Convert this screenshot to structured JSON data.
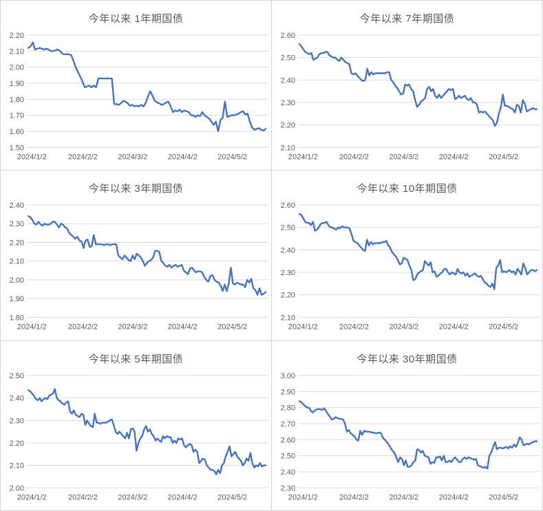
{
  "colors": {
    "line": "#4472C4",
    "gridline": "#d9d9d9",
    "axis_text": "#595959",
    "title_text": "#595959",
    "panel_border": "#d3d3d3",
    "background": "#ffffff"
  },
  "chart_data": [
    {
      "type": "line",
      "title": "今年以来 1年期国债",
      "xlabel": "",
      "ylabel": "",
      "ylim": [
        1.5,
        2.2
      ],
      "ystep": 0.1,
      "grid": true,
      "legend": "none",
      "x_ticks": [
        "2024/1/2",
        "2024/2/2",
        "2024/3/2",
        "2024/4/2",
        "2024/5/2"
      ],
      "values": [
        2.12,
        2.13,
        2.155,
        2.11,
        2.115,
        2.12,
        2.115,
        2.11,
        2.115,
        2.11,
        2.1,
        2.1,
        2.105,
        2.11,
        2.1,
        2.085,
        2.08,
        2.08,
        2.08,
        2.075,
        2.04,
        2.0,
        1.97,
        1.94,
        1.91,
        1.875,
        1.88,
        1.885,
        1.875,
        1.885,
        1.875,
        1.93,
        1.93,
        1.93,
        1.93,
        1.93,
        1.93,
        1.93,
        1.77,
        1.77,
        1.765,
        1.775,
        1.79,
        1.785,
        1.775,
        1.76,
        1.765,
        1.755,
        1.76,
        1.755,
        1.765,
        1.755,
        1.78,
        1.82,
        1.85,
        1.82,
        1.79,
        1.78,
        1.775,
        1.765,
        1.77,
        1.78,
        1.785,
        1.755,
        1.72,
        1.73,
        1.725,
        1.735,
        1.72,
        1.73,
        1.725,
        1.72,
        1.7,
        1.7,
        1.69,
        1.7,
        1.695,
        1.72,
        1.7,
        1.69,
        1.68,
        1.66,
        1.64,
        1.66,
        1.6,
        1.67,
        1.685,
        1.785,
        1.69,
        1.695,
        1.7,
        1.7,
        1.705,
        1.71,
        1.72,
        1.725,
        1.705,
        1.71,
        1.66,
        1.625,
        1.61,
        1.615,
        1.62,
        1.61,
        1.605,
        1.615
      ]
    },
    {
      "type": "line",
      "title": "今年以来 7年期国债",
      "xlabel": "",
      "ylabel": "",
      "ylim": [
        2.1,
        2.6
      ],
      "ystep": 0.1,
      "grid": true,
      "legend": "none",
      "x_ticks": [
        "2024/1/2",
        "2024/2/2",
        "2024/3/2",
        "2024/4/2",
        "2024/5/2"
      ],
      "values": [
        2.56,
        2.55,
        2.535,
        2.525,
        2.52,
        2.515,
        2.52,
        2.49,
        2.495,
        2.5,
        2.515,
        2.52,
        2.52,
        2.525,
        2.525,
        2.51,
        2.505,
        2.5,
        2.5,
        2.49,
        2.485,
        2.5,
        2.49,
        2.48,
        2.475,
        2.47,
        2.43,
        2.425,
        2.43,
        2.42,
        2.41,
        2.4,
        2.395,
        2.4,
        2.45,
        2.42,
        2.435,
        2.425,
        2.43,
        2.43,
        2.43,
        2.43,
        2.43,
        2.43,
        2.435,
        2.435,
        2.4,
        2.39,
        2.375,
        2.365,
        2.35,
        2.335,
        2.34,
        2.38,
        2.375,
        2.38,
        2.36,
        2.35,
        2.31,
        2.28,
        2.29,
        2.305,
        2.31,
        2.32,
        2.36,
        2.37,
        2.35,
        2.36,
        2.33,
        2.32,
        2.335,
        2.32,
        2.33,
        2.34,
        2.35,
        2.36,
        2.355,
        2.36,
        2.315,
        2.32,
        2.33,
        2.32,
        2.325,
        2.33,
        2.315,
        2.31,
        2.32,
        2.3,
        2.3,
        2.29,
        2.255,
        2.26,
        2.255,
        2.26,
        2.25,
        2.24,
        2.23,
        2.22,
        2.195,
        2.21,
        2.25,
        2.28,
        2.335,
        2.285,
        2.285,
        2.28,
        2.275,
        2.27,
        2.255,
        2.29,
        2.285,
        2.255,
        2.31,
        2.295,
        2.26,
        2.265,
        2.27,
        2.275,
        2.27,
        2.27
      ]
    },
    {
      "type": "line",
      "title": "今年以来 3年期国债",
      "xlabel": "",
      "ylabel": "",
      "ylim": [
        1.8,
        2.4
      ],
      "ystep": 0.1,
      "grid": true,
      "legend": "none",
      "x_ticks": [
        "2024/1/2",
        "2024/2/2",
        "2024/3/2",
        "2024/4/2",
        "2024/5/2"
      ],
      "values": [
        2.34,
        2.335,
        2.32,
        2.3,
        2.295,
        2.31,
        2.295,
        2.29,
        2.3,
        2.295,
        2.295,
        2.3,
        2.31,
        2.31,
        2.295,
        2.28,
        2.3,
        2.295,
        2.28,
        2.275,
        2.25,
        2.24,
        2.23,
        2.22,
        2.23,
        2.21,
        2.205,
        2.17,
        2.21,
        2.215,
        2.175,
        2.18,
        2.24,
        2.19,
        2.19,
        2.19,
        2.19,
        2.185,
        2.19,
        2.19,
        2.185,
        2.19,
        2.19,
        2.19,
        2.13,
        2.12,
        2.11,
        2.13,
        2.12,
        2.105,
        2.1,
        2.13,
        2.11,
        2.14,
        2.13,
        2.12,
        2.1,
        2.075,
        2.09,
        2.1,
        2.105,
        2.12,
        2.155,
        2.155,
        2.15,
        2.1,
        2.09,
        2.075,
        2.07,
        2.08,
        2.065,
        2.075,
        2.08,
        2.07,
        2.075,
        2.08,
        2.05,
        2.04,
        2.03,
        2.06,
        2.065,
        2.05,
        2.04,
        2.045,
        2.045,
        2.04,
        2.015,
        2.0,
        1.99,
        2.02,
        2.025,
        2.0,
        1.99,
        1.985,
        1.97,
        1.94,
        1.975,
        1.94,
        1.98,
        2.065,
        1.98,
        1.975,
        1.985,
        1.98,
        1.975,
        1.975,
        1.96,
        2.0,
        1.985,
        2.005,
        1.955,
        1.945,
        1.92,
        1.955,
        1.92,
        1.925,
        1.935
      ]
    },
    {
      "type": "line",
      "title": "今年以来 10年期国债",
      "xlabel": "",
      "ylabel": "",
      "ylim": [
        2.1,
        2.6
      ],
      "ystep": 0.1,
      "grid": true,
      "legend": "none",
      "x_ticks": [
        "2024/1/2",
        "2024/2/2",
        "2024/3/2",
        "2024/4/2",
        "2024/5/2"
      ],
      "values": [
        2.56,
        2.555,
        2.54,
        2.525,
        2.52,
        2.52,
        2.51,
        2.525,
        2.485,
        2.49,
        2.5,
        2.515,
        2.52,
        2.52,
        2.525,
        2.51,
        2.5,
        2.5,
        2.495,
        2.49,
        2.5,
        2.495,
        2.505,
        2.5,
        2.5,
        2.5,
        2.495,
        2.47,
        2.44,
        2.435,
        2.43,
        2.42,
        2.41,
        2.4,
        2.395,
        2.445,
        2.42,
        2.435,
        2.425,
        2.43,
        2.43,
        2.43,
        2.43,
        2.435,
        2.435,
        2.44,
        2.42,
        2.41,
        2.39,
        2.38,
        2.37,
        2.355,
        2.335,
        2.34,
        2.365,
        2.36,
        2.355,
        2.33,
        2.31,
        2.265,
        2.27,
        2.29,
        2.3,
        2.305,
        2.31,
        2.35,
        2.34,
        2.33,
        2.345,
        2.3,
        2.305,
        2.28,
        2.285,
        2.295,
        2.3,
        2.315,
        2.315,
        2.3,
        2.29,
        2.3,
        2.295,
        2.29,
        2.315,
        2.3,
        2.295,
        2.3,
        2.285,
        2.295,
        2.28,
        2.285,
        2.29,
        2.295,
        2.285,
        2.28,
        2.285,
        2.27,
        2.255,
        2.25,
        2.24,
        2.235,
        2.25,
        2.225,
        2.32,
        2.33,
        2.355,
        2.3,
        2.305,
        2.3,
        2.305,
        2.31,
        2.3,
        2.305,
        2.29,
        2.315,
        2.305,
        2.29,
        2.34,
        2.32,
        2.29,
        2.3,
        2.31,
        2.31,
        2.305,
        2.31
      ]
    },
    {
      "type": "line",
      "title": "今年以来 5年期国债",
      "xlabel": "",
      "ylabel": "",
      "ylim": [
        2.0,
        2.5
      ],
      "ystep": 0.1,
      "grid": true,
      "legend": "none",
      "x_ticks": [
        "2024/1/2",
        "2024/2/2",
        "2024/3/2",
        "2024/4/2",
        "2024/5/2"
      ],
      "values": [
        2.435,
        2.43,
        2.42,
        2.41,
        2.395,
        2.39,
        2.4,
        2.385,
        2.395,
        2.4,
        2.395,
        2.41,
        2.415,
        2.42,
        2.44,
        2.4,
        2.39,
        2.385,
        2.375,
        2.37,
        2.38,
        2.385,
        2.34,
        2.33,
        2.345,
        2.325,
        2.32,
        2.315,
        2.33,
        2.325,
        2.28,
        2.3,
        2.285,
        2.275,
        2.27,
        2.33,
        2.29,
        2.29,
        2.285,
        2.29,
        2.29,
        2.29,
        2.295,
        2.3,
        2.305,
        2.28,
        2.25,
        2.24,
        2.25,
        2.24,
        2.23,
        2.22,
        2.245,
        2.22,
        2.26,
        2.265,
        2.25,
        2.165,
        2.2,
        2.22,
        2.23,
        2.26,
        2.275,
        2.25,
        2.26,
        2.24,
        2.23,
        2.21,
        2.22,
        2.21,
        2.205,
        2.23,
        2.22,
        2.23,
        2.225,
        2.225,
        2.2,
        2.21,
        2.2,
        2.22,
        2.215,
        2.22,
        2.19,
        2.18,
        2.19,
        2.195,
        2.19,
        2.16,
        2.17,
        2.16,
        2.11,
        2.12,
        2.13,
        2.125,
        2.1,
        2.09,
        2.08,
        2.08,
        2.075,
        2.06,
        2.08,
        2.065,
        2.1,
        2.11,
        2.14,
        2.16,
        2.185,
        2.14,
        2.15,
        2.16,
        2.14,
        2.13,
        2.12,
        2.1,
        2.11,
        2.13,
        2.12,
        2.155,
        2.11,
        2.09,
        2.1,
        2.095,
        2.11,
        2.095,
        2.1,
        2.1
      ]
    },
    {
      "type": "line",
      "title": "今年以来 30年期国债",
      "xlabel": "",
      "ylabel": "",
      "ylim": [
        2.3,
        3.0
      ],
      "ystep": 0.1,
      "grid": true,
      "legend": "none",
      "x_ticks": [
        "2024/1/2",
        "2024/2/2",
        "2024/3/2",
        "2024/4/2",
        "2024/5/2"
      ],
      "values": [
        2.84,
        2.835,
        2.82,
        2.81,
        2.8,
        2.8,
        2.78,
        2.77,
        2.78,
        2.79,
        2.79,
        2.79,
        2.785,
        2.795,
        2.78,
        2.76,
        2.745,
        2.725,
        2.73,
        2.74,
        2.735,
        2.73,
        2.73,
        2.725,
        2.7,
        2.65,
        2.66,
        2.64,
        2.63,
        2.62,
        2.6,
        2.595,
        2.655,
        2.63,
        2.655,
        2.65,
        2.65,
        2.65,
        2.645,
        2.645,
        2.64,
        2.64,
        2.645,
        2.64,
        2.61,
        2.6,
        2.585,
        2.57,
        2.55,
        2.53,
        2.52,
        2.49,
        2.46,
        2.49,
        2.48,
        2.44,
        2.47,
        2.43,
        2.43,
        2.44,
        2.46,
        2.47,
        2.54,
        2.535,
        2.52,
        2.53,
        2.5,
        2.495,
        2.49,
        2.45,
        2.46,
        2.455,
        2.49,
        2.49,
        2.495,
        2.47,
        2.5,
        2.46,
        2.46,
        2.47,
        2.46,
        2.48,
        2.49,
        2.475,
        2.46,
        2.46,
        2.48,
        2.49,
        2.48,
        2.49,
        2.485,
        2.48,
        2.475,
        2.48,
        2.44,
        2.435,
        2.43,
        2.425,
        2.43,
        2.42,
        2.5,
        2.52,
        2.555,
        2.585,
        2.54,
        2.55,
        2.55,
        2.545,
        2.55,
        2.555,
        2.545,
        2.56,
        2.55,
        2.57,
        2.555,
        2.58,
        2.615,
        2.6,
        2.565,
        2.57,
        2.575,
        2.57,
        2.58,
        2.585,
        2.59,
        2.59
      ]
    }
  ]
}
